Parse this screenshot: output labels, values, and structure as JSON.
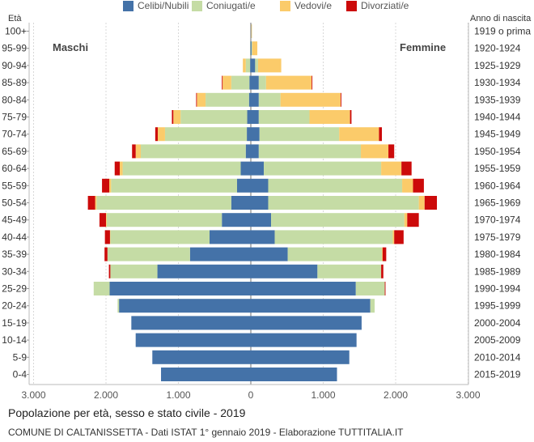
{
  "header": {
    "left_label": "Età",
    "right_label": "Anno di nascita"
  },
  "legend": [
    {
      "name": "Celibi/Nubili",
      "color": "#4472a8"
    },
    {
      "name": "Coniugati/e",
      "color": "#c5dca5"
    },
    {
      "name": "Vedovi/e",
      "color": "#fbcb6a"
    },
    {
      "name": "Divorziati/e",
      "color": "#cc0a0a"
    }
  ],
  "side_labels": {
    "left": "Maschi",
    "right": "Femmine"
  },
  "chart_data": {
    "type": "bar",
    "orientation": "horizontal-pyramid",
    "title": "Popolazione per età, sesso e stato civile - 2019",
    "categories": [
      "100+",
      "95-99",
      "90-94",
      "85-89",
      "80-84",
      "75-79",
      "70-74",
      "65-69",
      "60-64",
      "55-59",
      "50-54",
      "45-49",
      "40-44",
      "35-39",
      "30-34",
      "25-29",
      "20-24",
      "15-19",
      "10-14",
      "5-9",
      "0-4"
    ],
    "birth_years": [
      "1919 o prima",
      "1920-1924",
      "1925-1929",
      "1930-1934",
      "1935-1939",
      "1940-1944",
      "1945-1949",
      "1950-1954",
      "1955-1959",
      "1960-1964",
      "1965-1969",
      "1970-1974",
      "1975-1979",
      "1980-1984",
      "1985-1989",
      "1990-1994",
      "1995-1999",
      "2000-2004",
      "2005-2009",
      "2010-2014",
      "2015-2019"
    ],
    "x_ticks": [
      "3.000",
      "2.000",
      "1.000",
      "0",
      "1.000",
      "2.000",
      "3.000"
    ],
    "xlim": [
      -3000,
      3000
    ],
    "males": {
      "Celibi/Nubili": [
        0,
        5,
        10,
        20,
        25,
        50,
        55,
        70,
        140,
        190,
        270,
        400,
        570,
        840,
        1290,
        1950,
        1820,
        1650,
        1590,
        1360,
        1240
      ],
      "Coniugati/e": [
        0,
        5,
        60,
        250,
        600,
        920,
        1130,
        1450,
        1630,
        1740,
        1860,
        1590,
        1370,
        1140,
        650,
        220,
        20,
        0,
        0,
        0,
        0
      ],
      "Vedovi/e": [
        0,
        0,
        40,
        120,
        120,
        100,
        100,
        70,
        40,
        25,
        20,
        10,
        5,
        0,
        0,
        0,
        0,
        0,
        0,
        0,
        0
      ],
      "Divorziati/e": [
        0,
        0,
        0,
        10,
        10,
        20,
        35,
        50,
        70,
        100,
        100,
        90,
        70,
        40,
        20,
        0,
        0,
        0,
        0,
        0,
        0
      ]
    },
    "females": {
      "Celibi/Nubili": [
        5,
        10,
        60,
        110,
        110,
        110,
        120,
        110,
        180,
        240,
        240,
        280,
        330,
        510,
        920,
        1450,
        1650,
        1530,
        1460,
        1360,
        1190
      ],
      "Coniugati/e": [
        0,
        10,
        40,
        100,
        300,
        700,
        1100,
        1410,
        1620,
        1850,
        2080,
        1840,
        1630,
        1300,
        880,
        400,
        60,
        0,
        0,
        0,
        0
      ],
      "Vedovi/e": [
        10,
        70,
        320,
        630,
        830,
        560,
        550,
        380,
        280,
        150,
        80,
        40,
        20,
        10,
        0,
        0,
        0,
        0,
        0,
        0,
        0
      ],
      "Divorziati/e": [
        0,
        0,
        0,
        10,
        10,
        20,
        40,
        80,
        140,
        150,
        170,
        160,
        130,
        50,
        30,
        10,
        0,
        0,
        0,
        0,
        0
      ]
    }
  },
  "footer": {
    "title": "Popolazione per età, sesso e stato civile - 2019",
    "source": "COMUNE DI CALTANISSETTA - Dati ISTAT 1° gennaio 2019 - Elaborazione TUTTITALIA.IT"
  }
}
